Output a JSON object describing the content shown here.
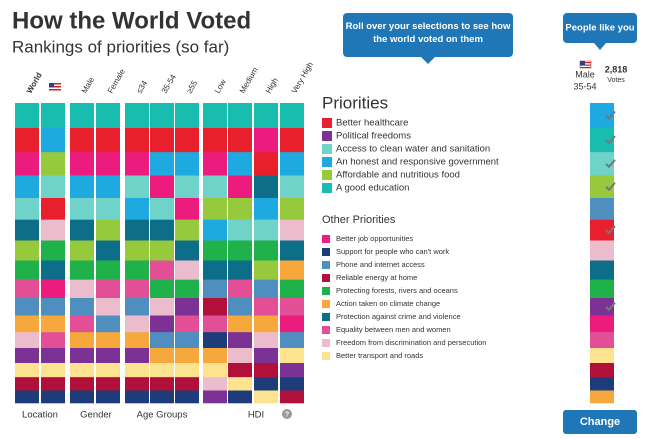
{
  "header": {
    "title": "How the World Voted",
    "subtitle": "Rankings of priorities (so far)"
  },
  "tooltip_main": "Roll over your selections to see how the world voted on them",
  "tooltip_people": "People like you",
  "priorities_heading": "Priorities",
  "other_heading": "Other Priorities",
  "priorities": [
    {
      "name": "Better healthcare",
      "color": "#e8202e"
    },
    {
      "name": "Political freedoms",
      "color": "#7b3294"
    },
    {
      "name": "Access to clean water and sanitation",
      "color": "#6fd3c9"
    },
    {
      "name": "An honest and responsive government",
      "color": "#1fa9e1"
    },
    {
      "name": "Affordable and nutritious food",
      "color": "#97c93d"
    },
    {
      "name": "A good education",
      "color": "#19bdb0"
    },
    {
      "name": "Better job opportunities",
      "color": "#ec1b7e"
    },
    {
      "name": "Support for people who can't work",
      "color": "#1d3d7a"
    },
    {
      "name": "Phone and internet access",
      "color": "#4f8fc0"
    },
    {
      "name": "Reliable energy at home",
      "color": "#b0103a"
    },
    {
      "name": "Protecting forests, rivers and oceans",
      "color": "#1fb24a"
    },
    {
      "name": "Action taken on climate change",
      "color": "#f7a83d"
    },
    {
      "name": "Protection against crime and violence",
      "color": "#0d6e8a"
    },
    {
      "name": "Equality between men and women",
      "color": "#e34f97"
    },
    {
      "name": "Freedom from discrimination and persecution",
      "color": "#ebbccb"
    },
    {
      "name": "Better transport and roads",
      "color": "#fde38f"
    }
  ],
  "columns": [
    {
      "label": "World",
      "ranking": [
        5,
        0,
        6,
        3,
        2,
        12,
        4,
        10,
        13,
        8,
        11,
        14,
        1,
        15,
        9,
        7
      ]
    },
    {
      "label": null,
      "ranking": [
        5,
        3,
        4,
        2,
        0,
        14,
        10,
        12,
        6,
        8,
        11,
        13,
        1,
        15,
        9,
        7
      ]
    },
    {
      "label": "Male",
      "ranking": [
        5,
        0,
        6,
        3,
        2,
        12,
        4,
        10,
        14,
        8,
        13,
        11,
        1,
        15,
        9,
        7
      ]
    },
    {
      "label": "Female",
      "ranking": [
        5,
        0,
        6,
        3,
        2,
        4,
        12,
        10,
        13,
        14,
        8,
        11,
        1,
        15,
        9,
        7
      ]
    },
    {
      "label": "≤34",
      "ranking": [
        5,
        0,
        6,
        2,
        3,
        12,
        4,
        10,
        13,
        8,
        14,
        11,
        1,
        15,
        9,
        7
      ]
    },
    {
      "label": "35-54",
      "ranking": [
        5,
        0,
        3,
        6,
        2,
        12,
        4,
        13,
        10,
        14,
        1,
        8,
        11,
        15,
        9,
        7
      ]
    },
    {
      "label": "≥55",
      "ranking": [
        5,
        0,
        3,
        2,
        6,
        4,
        12,
        14,
        10,
        1,
        13,
        8,
        11,
        15,
        9,
        7
      ]
    },
    {
      "label": "Low",
      "ranking": [
        5,
        0,
        6,
        2,
        4,
        3,
        10,
        12,
        8,
        9,
        13,
        7,
        11,
        15,
        14,
        1
      ]
    },
    {
      "label": "Medium",
      "ranking": [
        5,
        0,
        3,
        6,
        4,
        2,
        10,
        12,
        13,
        8,
        11,
        1,
        14,
        9,
        15,
        7
      ]
    },
    {
      "label": "High",
      "ranking": [
        5,
        6,
        0,
        12,
        3,
        2,
        10,
        4,
        8,
        13,
        11,
        14,
        1,
        9,
        7,
        15
      ]
    },
    {
      "label": "Very High",
      "ranking": [
        5,
        0,
        3,
        2,
        4,
        14,
        12,
        11,
        10,
        13,
        6,
        8,
        15,
        1,
        7,
        9
      ]
    }
  ],
  "groups": [
    "Location",
    "Gender",
    "Age Groups",
    "HDI"
  ],
  "help": "?",
  "person": {
    "gender": "Male",
    "age": "35-54",
    "votes": "2,818",
    "votes_label": "Votes",
    "ranking": [
      3,
      5,
      2,
      4,
      8,
      0,
      14,
      12,
      10,
      1,
      6,
      13,
      15,
      9,
      7,
      11
    ]
  },
  "button": "Change"
}
